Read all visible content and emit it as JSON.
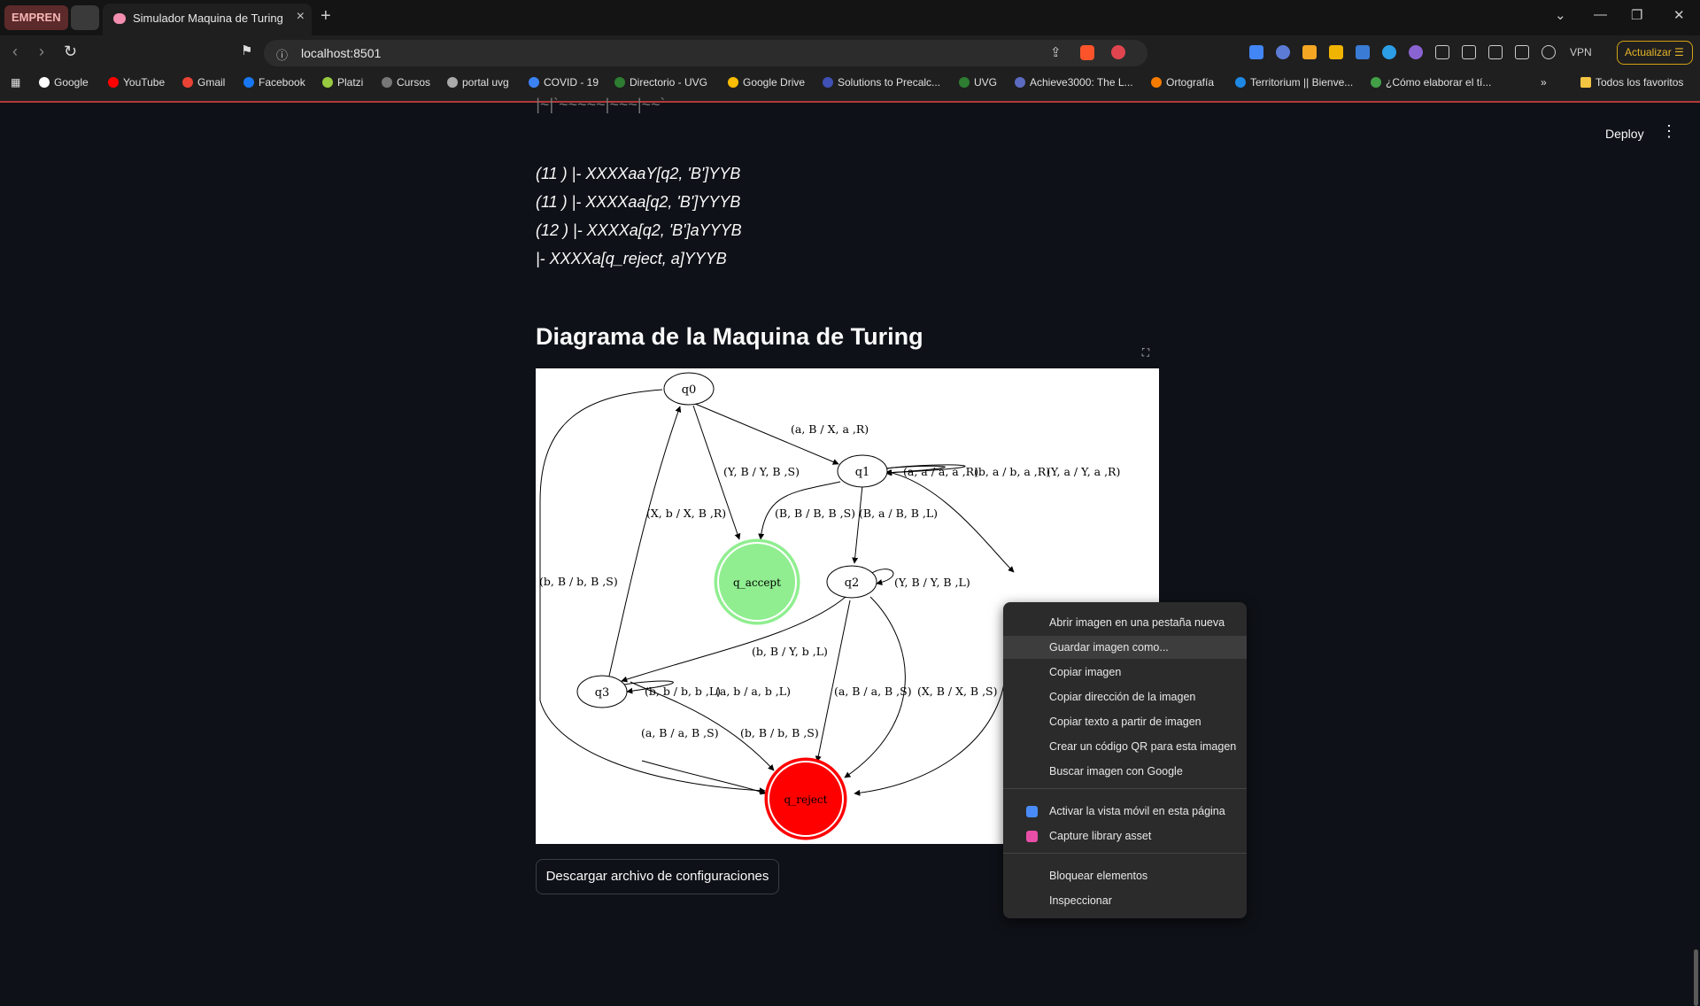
{
  "browser": {
    "group_label": "EMPREN",
    "tab_title": "Simulador Maquina de Turing",
    "url": "localhost:8501",
    "update_label": "Actualizar",
    "vpn_label": "VPN",
    "bookmarks": [
      "Google",
      "YouTube",
      "Gmail",
      "Facebook",
      "Platzi",
      "Cursos",
      "portal uvg",
      "COVID - 19",
      "Directorio - UVG",
      "Google Drive",
      "Solutions to Precalc...",
      "UVG",
      "Achieve3000: The L...",
      "Ortografía",
      "Territorium || Bienve...",
      "¿Cómo elaborar el tí..."
    ],
    "favorites_label": "Todos los favoritos"
  },
  "app": {
    "deploy_label": "Deploy",
    "config_lines": [
      "(11 ) |- XXXXaaY[q2, 'B']YYB",
      "(11 ) |- XXXXaa[q2, 'B']YYYB",
      "(12 ) |- XXXXa[q2, 'B']aYYYB",
      "|- XXXXa[q_reject, a]YYYB"
    ],
    "section_title": "Diagrama de la Maquina de Turing",
    "download_label": "Descargar archivo de configuraciones"
  },
  "diagram": {
    "states": [
      "q0",
      "q1",
      "q2",
      "q3",
      "q_accept",
      "q_reject"
    ],
    "transitions": [
      "(a, B / X, a ,R)",
      "(Y, B / Y, B ,S)",
      "(a, a / a, a ,R)",
      "(b, a / b, a ,R)",
      "(Y, a / Y, a ,R)",
      "(X, b / X, B ,R)",
      "(B, B / B, B ,S)",
      "(B, a / B, B ,L)",
      "(b, B / b, B ,S)",
      "(Y, B / Y, B ,L)",
      "(b, B / Y, b ,L)",
      "(b, b / b, b ,L)",
      "(a, b / a, b ,L)",
      "(a, B / a, B ,S)",
      "(X, B / X, B ,S)",
      "(a, B / a, B ,S)",
      "(b, B / b, B ,S)"
    ],
    "accept_color": "#90ee90",
    "reject_color": "#ff0000"
  },
  "context_menu": {
    "items": [
      "Abrir imagen en una pestaña nueva",
      "Guardar imagen como...",
      "Copiar imagen",
      "Copiar dirección de la imagen",
      "Copiar texto a partir de imagen",
      "Crear un código QR para esta imagen",
      "Buscar imagen con Google",
      "Activar la vista móvil en esta página",
      "Capture library asset",
      "Bloquear elementos",
      "Inspeccionar"
    ]
  }
}
